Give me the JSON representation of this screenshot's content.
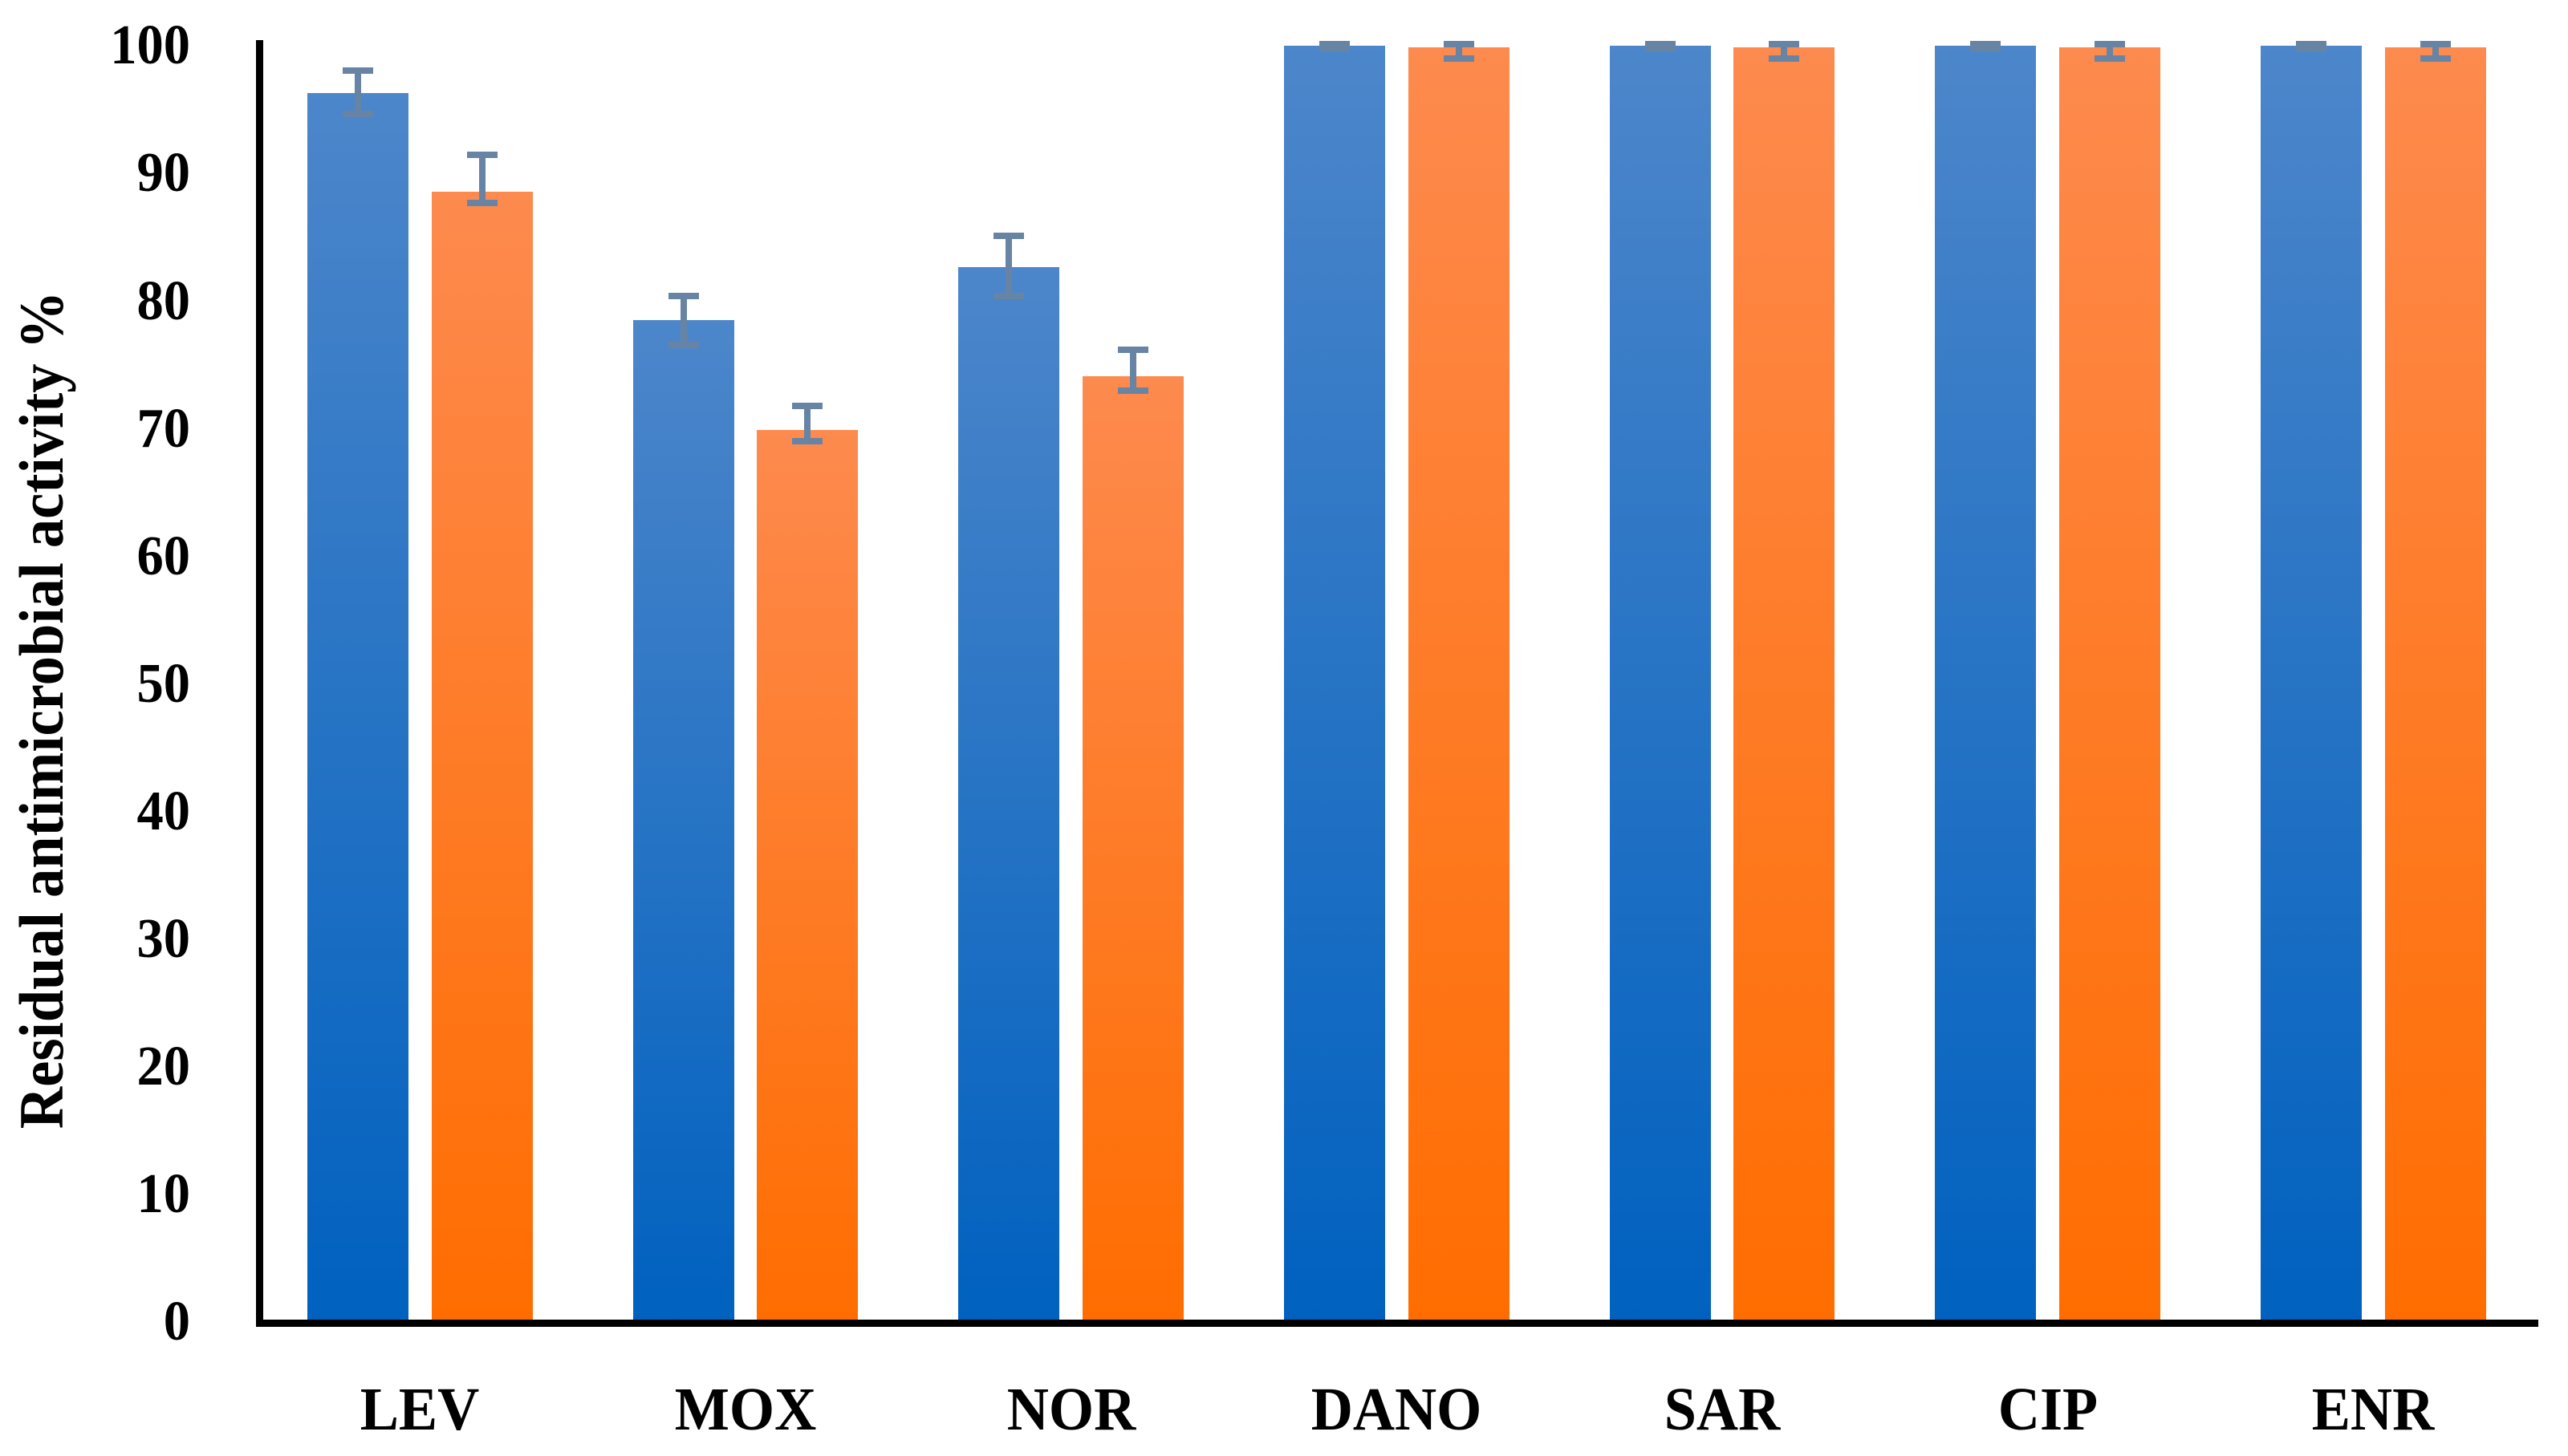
{
  "chart_data": {
    "type": "bar",
    "title": "",
    "xlabel": "",
    "ylabel": "Residual antimicrobial activity %",
    "ylim": [
      0,
      100
    ],
    "yticks": [
      0,
      10,
      20,
      30,
      40,
      50,
      60,
      70,
      80,
      90,
      100
    ],
    "grid": false,
    "legend": "none",
    "background_color": "#ffffff",
    "axis_color": "#000000",
    "error_bar_color": "#6884a4",
    "categories": [
      "LEV",
      "MOX",
      "NOR",
      "DANO",
      "SAR",
      "CIP",
      "ENR"
    ],
    "series": [
      {
        "name": "blue",
        "color_top": "#4d86ca",
        "color_bottom": "#0061bf",
        "values": [
          96.3,
          78.5,
          82.7,
          100,
          100,
          100,
          100
        ],
        "err_up": [
          1.8,
          1.9,
          2.4,
          0.15,
          0.15,
          0.15,
          0.15
        ],
        "err_down": [
          1.6,
          1.9,
          2.3,
          0.15,
          0.15,
          0.15,
          0.15
        ]
      },
      {
        "name": "orange",
        "color_top": "#fd8a4e",
        "color_bottom": "#ff6d00",
        "values": [
          88.6,
          69.9,
          74.1,
          99.9,
          99.9,
          99.9,
          99.9
        ],
        "err_up": [
          2.9,
          1.9,
          2.1,
          0.25,
          0.25,
          0.25,
          0.25
        ],
        "err_down": [
          0.9,
          0.9,
          1.1,
          0.9,
          0.9,
          0.9,
          0.9
        ]
      }
    ]
  }
}
